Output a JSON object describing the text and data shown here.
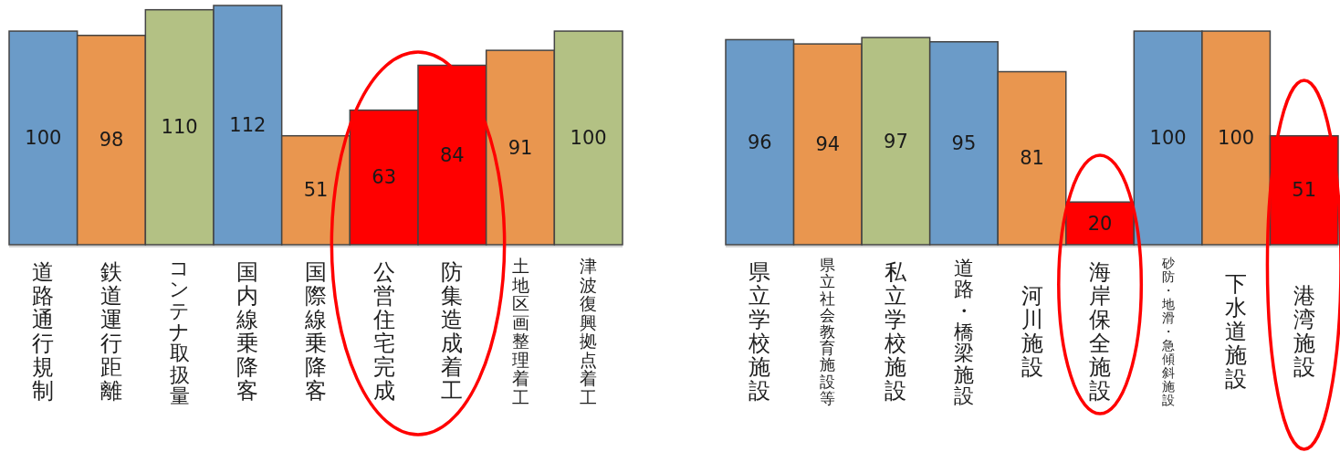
{
  "chart_data": [
    {
      "type": "bar",
      "categories": [
        "道路通行規制",
        "鉄道運行距離",
        "コンテナ取扱量",
        "国内線乗降客",
        "国際線乗降客",
        "公営住宅完成",
        "防集造成着工",
        "土地区画整理着工",
        "津波復興拠点着工"
      ],
      "values": [
        100,
        98,
        110,
        112,
        51,
        63,
        84,
        91,
        100
      ],
      "colors": [
        "#6b9bc8",
        "#e9964f",
        "#b3c184",
        "#6b9bc8",
        "#e9964f",
        "#ff0000",
        "#ff0000",
        "#e9964f",
        "#b3c184"
      ],
      "data_labels": true,
      "tick_labels": "x"
    },
    {
      "type": "bar",
      "categories": [
        "県立学校施設",
        "県立社会教育施設等",
        "私立学校施設",
        "道路・橋梁施設",
        "河川施設",
        "海岸保全施設",
        "砂防・地滑・急傾斜施設",
        "下水道施設",
        "港湾施設"
      ],
      "values": [
        96,
        94,
        97,
        95,
        81,
        20,
        100,
        100,
        51
      ],
      "colors": [
        "#6b9bc8",
        "#e9964f",
        "#b3c184",
        "#6b9bc8",
        "#e9964f",
        "#ff0000",
        "#6b9bc8",
        "#e9964f",
        "#ff0000"
      ],
      "data_labels": true,
      "tick_labels": "x"
    }
  ]
}
